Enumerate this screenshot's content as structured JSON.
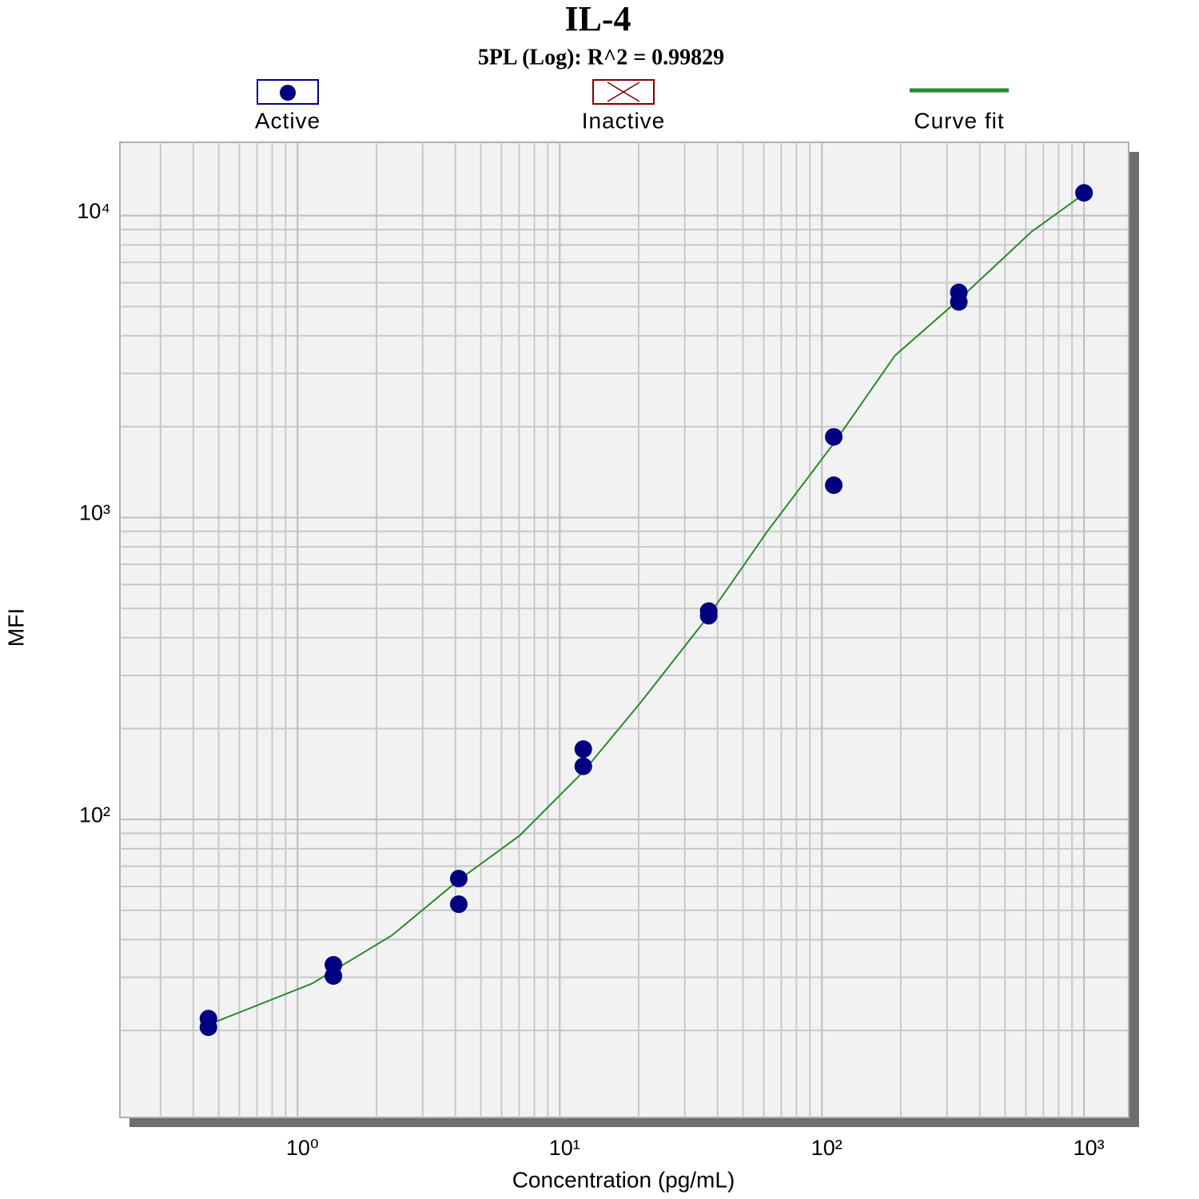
{
  "chart_data": {
    "type": "scatter",
    "title": "IL-4",
    "subtitle": "5PL (Log): R^2 = 0.99829",
    "x_label": "Concentration (pg/mL)",
    "y_label": "MFI",
    "xscale": "log",
    "yscale": "log",
    "grid": true,
    "legend": "top",
    "xlim": [
      0.21,
      1480
    ],
    "ylim": [
      10.3,
      17500
    ],
    "xticks": [
      {
        "value": 1,
        "label": "10⁰"
      },
      {
        "value": 10,
        "label": "10¹"
      },
      {
        "value": 100,
        "label": "10²"
      },
      {
        "value": 1000,
        "label": "10³"
      }
    ],
    "yticks": [
      {
        "value": 100,
        "label": "10²"
      },
      {
        "value": 1000,
        "label": "10³"
      },
      {
        "value": 10000,
        "label": "10⁴"
      }
    ],
    "series": [
      {
        "name": "Active",
        "color": "#000080",
        "mode": "markers",
        "x": [
          0.457,
          0.457,
          1.37,
          1.37,
          4.12,
          4.12,
          12.3,
          12.3,
          37,
          37,
          111,
          111,
          333,
          333,
          1000
        ],
        "values": [
          21.9,
          20.5,
          33,
          30.3,
          63.7,
          52.4,
          171,
          150,
          490,
          473,
          1850,
          1280,
          5570,
          5180,
          11900
        ]
      },
      {
        "name": "Inactive",
        "color": "#800000",
        "mode": "cross",
        "x": [],
        "values": []
      },
      {
        "name": "Curve fit",
        "color": "#2a8a2a",
        "mode": "line",
        "x": [
          0.457,
          1.135,
          2.29,
          4.12,
          7.04,
          12.3,
          20.2,
          37,
          62,
          111,
          190,
          333,
          631,
          1000
        ],
        "values": [
          20.9,
          28.6,
          41.3,
          63,
          88.5,
          144,
          242,
          473,
          901,
          1760,
          3440,
          5270,
          8850,
          11800
        ]
      }
    ]
  }
}
